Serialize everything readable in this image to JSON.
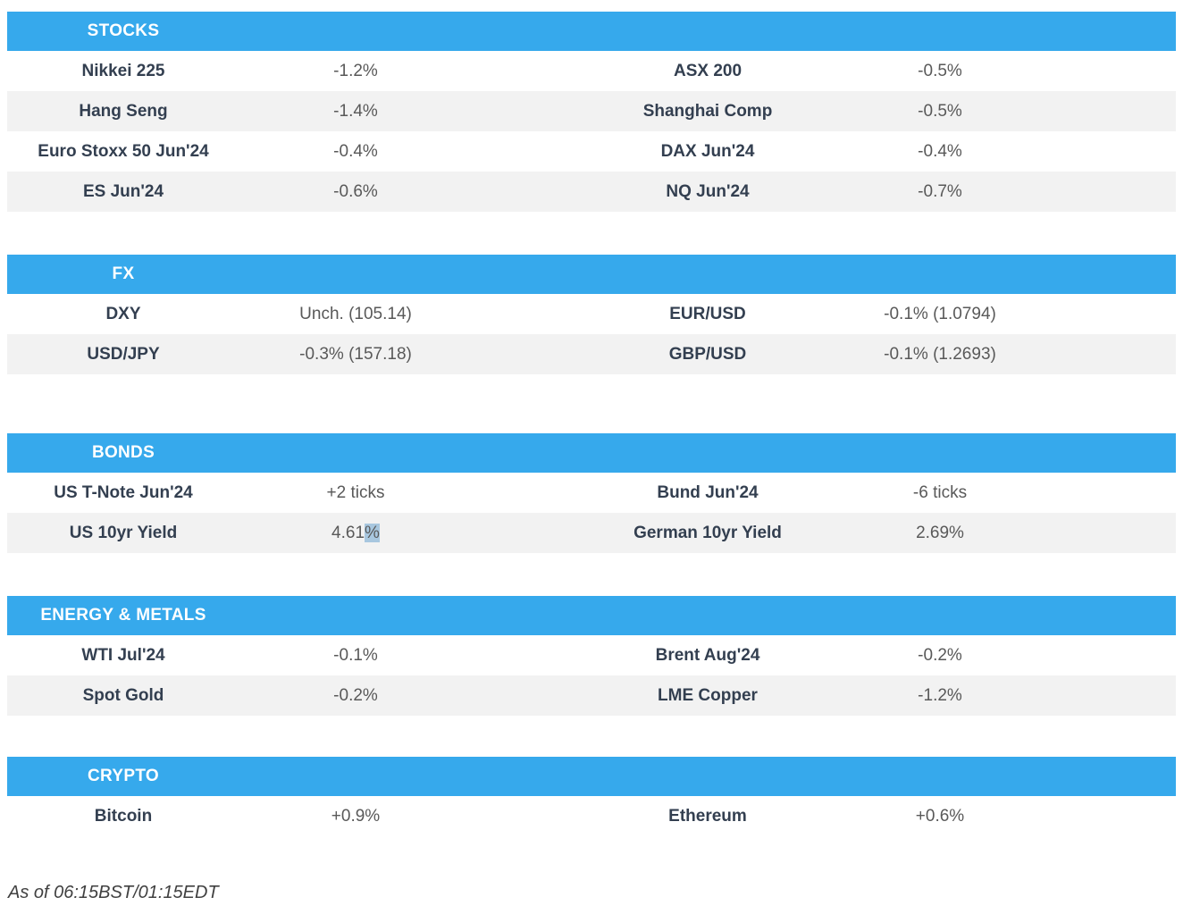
{
  "colors": {
    "header_bg": "#36A9EC",
    "header_text": "#FFFFFF",
    "stripe_bg": "#F2F2F2",
    "name_text": "#333F50",
    "value_text": "#595959",
    "selection_highlight": "#A8C7DF"
  },
  "sections": [
    {
      "title": "STOCKS",
      "rows": [
        {
          "l_name": "Nikkei 225",
          "l_value": "-1.2%",
          "r_name": "ASX 200",
          "r_value": "-0.5%"
        },
        {
          "l_name": "Hang Seng",
          "l_value": "-1.4%",
          "r_name": "Shanghai Comp",
          "r_value": "-0.5%"
        },
        {
          "l_name": "Euro Stoxx 50 Jun'24",
          "l_value": "-0.4%",
          "r_name": "DAX Jun'24",
          "r_value": "-0.4%"
        },
        {
          "l_name": "ES Jun'24",
          "l_value": "-0.6%",
          "r_name": "NQ Jun'24",
          "r_value": "-0.7%"
        }
      ]
    },
    {
      "title": "FX",
      "rows": [
        {
          "l_name": "DXY",
          "l_value": "Unch. (105.14)",
          "r_name": "EUR/USD",
          "r_value": "-0.1% (1.0794)"
        },
        {
          "l_name": "USD/JPY",
          "l_value": "-0.3% (157.18)",
          "r_name": "GBP/USD",
          "r_value": "-0.1% (1.2693)"
        }
      ]
    },
    {
      "title": "BONDS",
      "rows": [
        {
          "l_name": "US T-Note Jun'24",
          "l_value": "+2 ticks",
          "r_name": "Bund Jun'24",
          "r_value": "-6 ticks"
        },
        {
          "l_name": "US 10yr Yield",
          "l_value": "4.61",
          "l_value_hl": "%",
          "r_name": "German 10yr Yield",
          "r_value": "2.69%"
        }
      ]
    },
    {
      "title": "ENERGY & METALS",
      "rows": [
        {
          "l_name": "WTI Jul'24",
          "l_value": "-0.1%",
          "r_name": "Brent Aug'24",
          "r_value": "-0.2%"
        },
        {
          "l_name": "Spot Gold",
          "l_value": "-0.2%",
          "r_name": "LME Copper",
          "r_value": "-1.2%"
        }
      ]
    },
    {
      "title": "CRYPTO",
      "rows": [
        {
          "l_name": "Bitcoin",
          "l_value": "+0.9%",
          "r_name": "Ethereum",
          "r_value": "+0.6%"
        }
      ]
    }
  ],
  "footer": {
    "text": "As of 06:15BST/01:15EDT"
  }
}
